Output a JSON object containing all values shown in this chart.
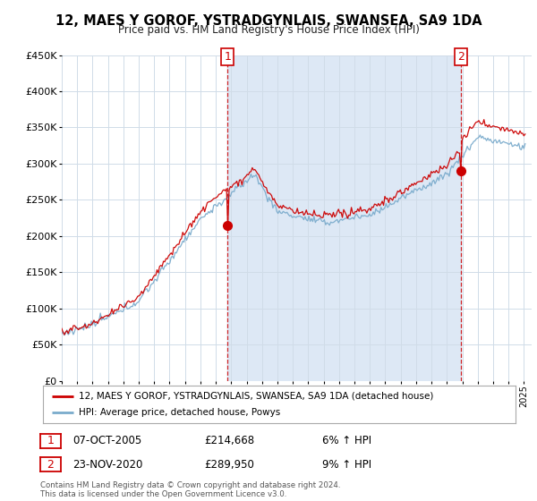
{
  "title": "12, MAES Y GOROF, YSTRADGYNLAIS, SWANSEA, SA9 1DA",
  "subtitle": "Price paid vs. HM Land Registry's House Price Index (HPI)",
  "red_label": "12, MAES Y GOROF, YSTRADGYNLAIS, SWANSEA, SA9 1DA (detached house)",
  "blue_label": "HPI: Average price, detached house, Powys",
  "annotation1": {
    "num": "1",
    "date": "07-OCT-2005",
    "price": "£214,668",
    "hpi": "6% ↑ HPI"
  },
  "annotation2": {
    "num": "2",
    "date": "23-NOV-2020",
    "price": "£289,950",
    "hpi": "9% ↑ HPI"
  },
  "footer": "Contains HM Land Registry data © Crown copyright and database right 2024.\nThis data is licensed under the Open Government Licence v3.0.",
  "sale1_year": 2005.77,
  "sale1_price": 214668,
  "sale2_year": 2020.9,
  "sale2_price": 289950,
  "ylim": [
    0,
    450000
  ],
  "xlim_left": 1995.0,
  "xlim_right": 2025.5,
  "background_color": "#ffffff",
  "plot_bg_color": "#ffffff",
  "shade_color": "#dde8f5",
  "red_color": "#cc0000",
  "blue_color": "#7aabcc",
  "dashed_color": "#cc0000",
  "grid_color": "#d0dce8"
}
